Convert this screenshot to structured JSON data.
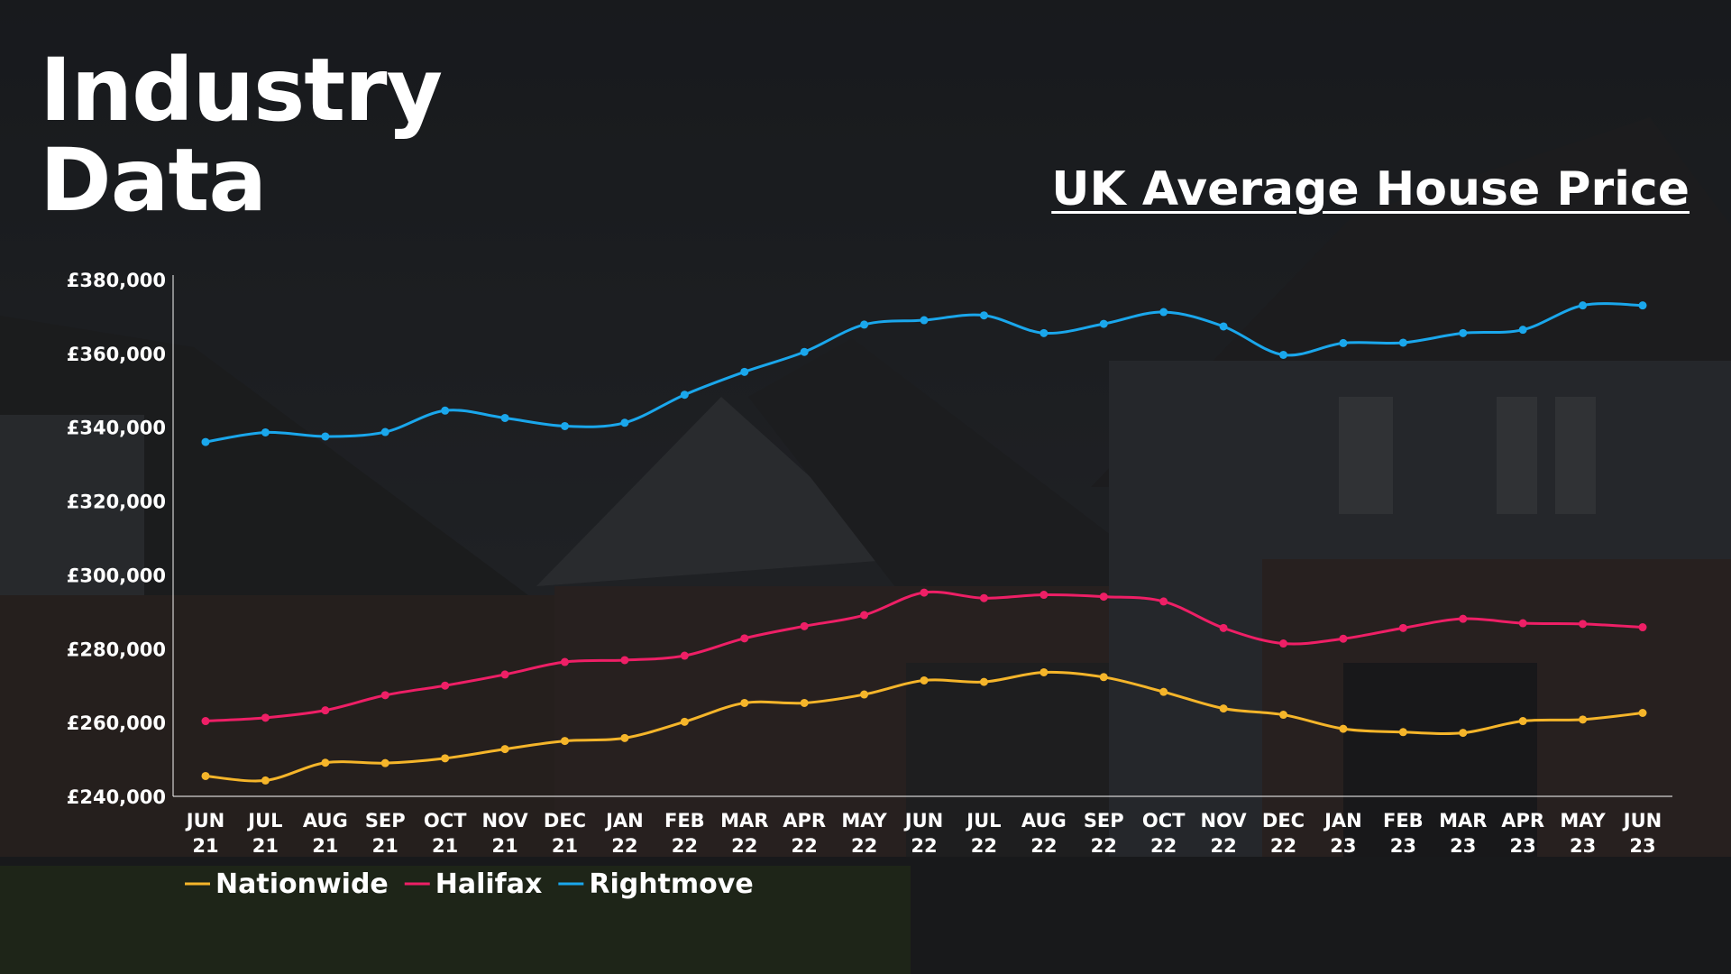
{
  "slide": {
    "title_line1": "Industry",
    "title_line2": "Data"
  },
  "colors": {
    "nationwide": "#f5b52a",
    "halifax": "#ee1f66",
    "rightmove": "#1aa7ec",
    "axis": "#ffffff",
    "text": "#ffffff"
  },
  "chart_data": {
    "type": "line",
    "title": "UK Average House Price",
    "xlabel": "",
    "ylabel": "",
    "ylim": [
      240000,
      380000
    ],
    "yticks": [
      240000,
      260000,
      280000,
      300000,
      320000,
      340000,
      360000,
      380000
    ],
    "ytick_labels": [
      "£240,000",
      "£260,000",
      "£280,000",
      "£300,000",
      "£320,000",
      "£340,000",
      "£360,000",
      "£380,000"
    ],
    "categories": [
      [
        "JUN",
        "21"
      ],
      [
        "JUL",
        "21"
      ],
      [
        "AUG",
        "21"
      ],
      [
        "SEP",
        "21"
      ],
      [
        "OCT",
        "21"
      ],
      [
        "NOV",
        "21"
      ],
      [
        "DEC",
        "21"
      ],
      [
        "JAN",
        "22"
      ],
      [
        "FEB",
        "22"
      ],
      [
        "MAR",
        "22"
      ],
      [
        "APR",
        "22"
      ],
      [
        "MAY",
        "22"
      ],
      [
        "JUN",
        "22"
      ],
      [
        "JUL",
        "22"
      ],
      [
        "AUG",
        "22"
      ],
      [
        "SEP",
        "22"
      ],
      [
        "OCT",
        "22"
      ],
      [
        "NOV",
        "22"
      ],
      [
        "DEC",
        "22"
      ],
      [
        "JAN",
        "23"
      ],
      [
        "FEB",
        "23"
      ],
      [
        "MAR",
        "23"
      ],
      [
        "APR",
        "23"
      ],
      [
        "MAY",
        "23"
      ],
      [
        "JUN",
        "23"
      ]
    ],
    "grid": false,
    "legend": "bottom-left",
    "series": [
      {
        "name": "Nationwide",
        "color": "#f5b52a",
        "values": [
          245500,
          244300,
          249100,
          249000,
          250300,
          252800,
          255000,
          255800,
          260200,
          265300,
          265300,
          267600,
          271400,
          271000,
          273600,
          272300,
          268300,
          263800,
          262100,
          258300,
          257400,
          257200,
          260400,
          260800,
          262600
        ]
      },
      {
        "name": "Halifax",
        "color": "#ee1f66",
        "values": [
          260400,
          261300,
          263300,
          267400,
          270000,
          273000,
          276400,
          276900,
          278100,
          282800,
          286100,
          289100,
          295200,
          293700,
          294600,
          294100,
          292800,
          285600,
          281400,
          282700,
          285600,
          288100,
          286900,
          286700,
          285800
        ]
      },
      {
        "name": "Rightmove",
        "color": "#1aa7ec",
        "values": [
          336000,
          338600,
          337500,
          338700,
          344500,
          342500,
          340300,
          341200,
          348800,
          355000,
          360400,
          367800,
          369000,
          370300,
          365500,
          368000,
          371200,
          367300,
          359600,
          362800,
          362900,
          365500,
          366400,
          373000,
          373000
        ]
      }
    ]
  }
}
